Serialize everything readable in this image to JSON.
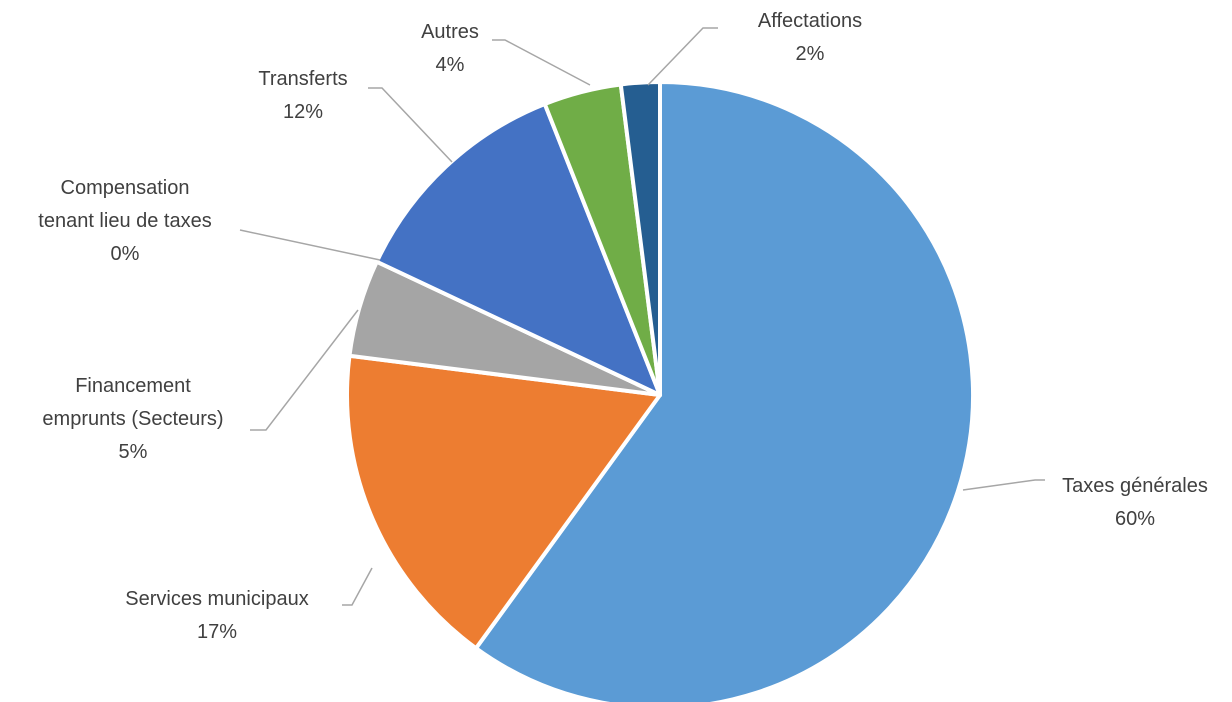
{
  "chart_data": {
    "type": "pie",
    "categories": [
      "Taxes générales",
      "Services municipaux",
      "Financement\nemprunts (Secteurs)",
      "Compensation\ntenant lieu de taxes",
      "Transferts",
      "Autres",
      "Affectations"
    ],
    "values": [
      60,
      17,
      5,
      0,
      12,
      4,
      2
    ],
    "value_labels": [
      "60%",
      "17%",
      "5%",
      "0%",
      "12%",
      "4%",
      "2%"
    ],
    "colors": [
      "#5b9bd5",
      "#ed7d31",
      "#a5a5a5",
      "#ffc000",
      "#4472c4",
      "#70ad47",
      "#255e91"
    ]
  }
}
